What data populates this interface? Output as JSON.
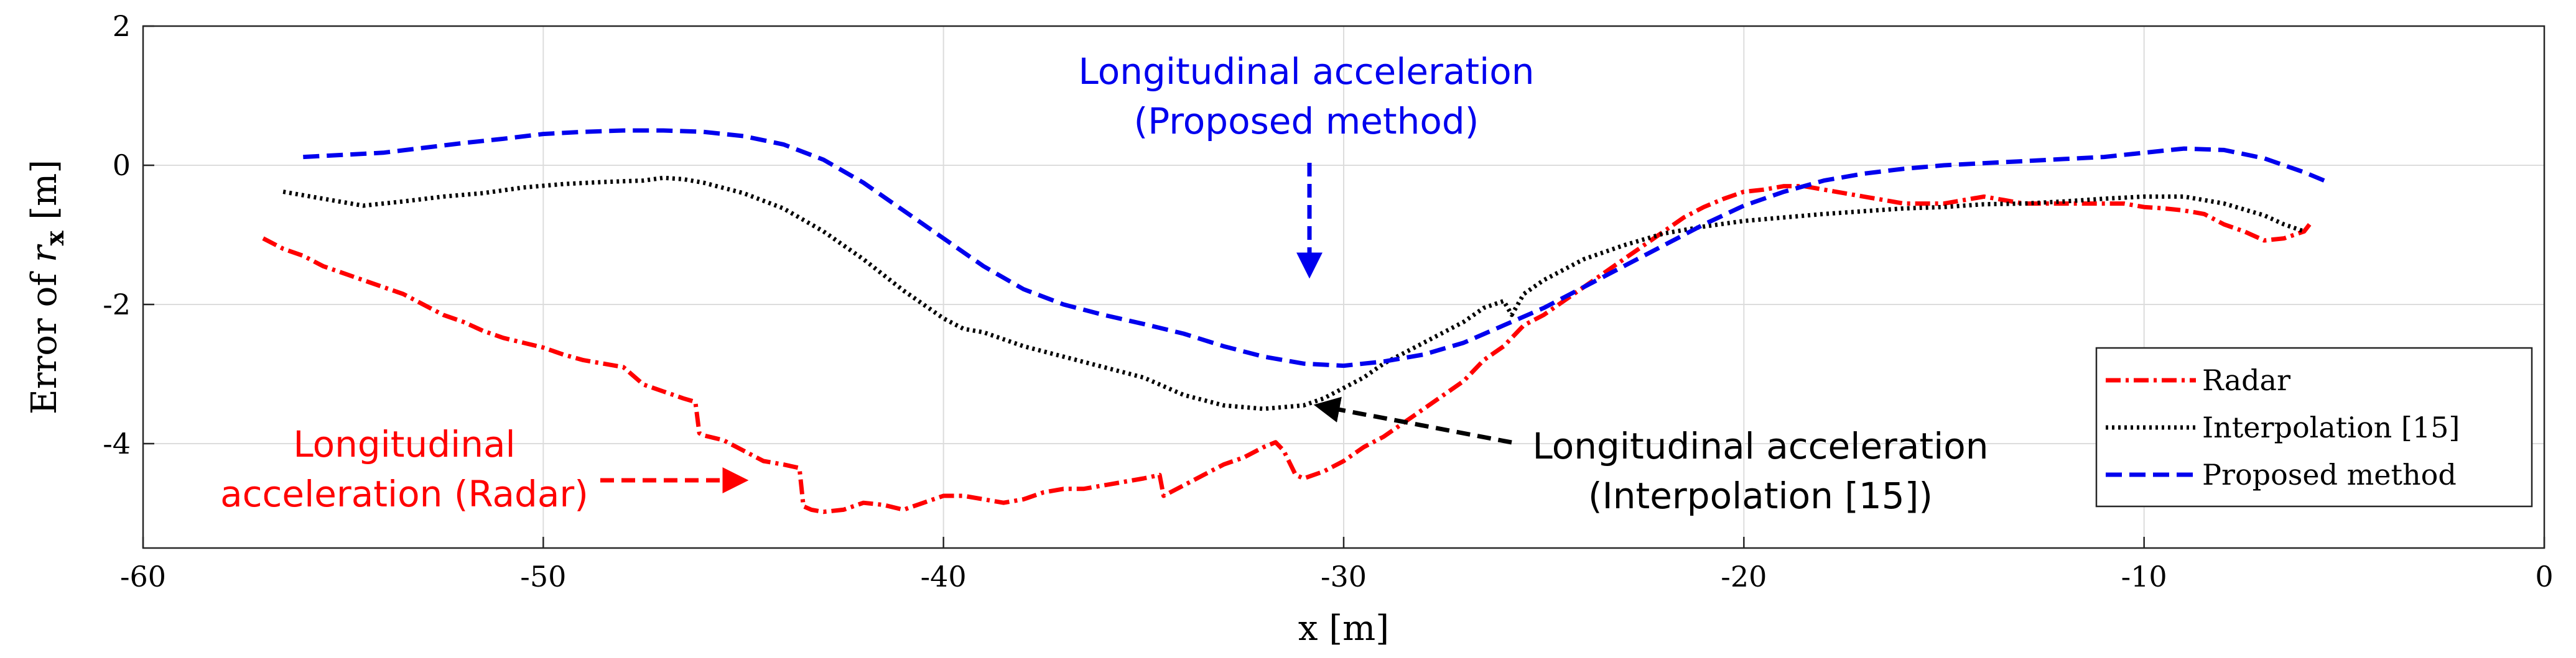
{
  "chart_data": {
    "type": "line",
    "xlabel": "x [m]",
    "ylabel_prefix": "Error of ",
    "ylabel_symbol": "r",
    "ylabel_subscript": "x",
    "ylabel_suffix": " [m]",
    "xlim": [
      -60,
      0
    ],
    "ylim": [
      -5.5,
      2
    ],
    "xticks": [
      -60,
      -50,
      -40,
      -30,
      -20,
      -10,
      0
    ],
    "yticks": [
      -4,
      -2,
      0,
      2
    ],
    "grid": true,
    "legend_position": "bottom-right",
    "series": [
      {
        "name": "Radar",
        "color": "#ff0000",
        "style": "dash-dot",
        "x": [
          -57,
          -56.5,
          -56,
          -55.5,
          -55,
          -54.5,
          -54,
          -53.5,
          -53,
          -52.5,
          -52,
          -51.5,
          -51,
          -50.5,
          -50,
          -49.5,
          -49,
          -48.5,
          -48,
          -47.5,
          -47,
          -46.5,
          -46.2,
          -46.1,
          -46,
          -45.5,
          -45,
          -44.5,
          -44,
          -43.6,
          -43.5,
          -43.3,
          -43,
          -42.5,
          -42,
          -41.5,
          -41,
          -40.5,
          -40,
          -39.5,
          -39,
          -38.5,
          -38,
          -37.5,
          -37,
          -36.5,
          -36,
          -35.5,
          -35,
          -34.6,
          -34.5,
          -34,
          -33.5,
          -33,
          -32.5,
          -32,
          -31.7,
          -31.5,
          -31.2,
          -31,
          -30.5,
          -30,
          -29.5,
          -29,
          -28.5,
          -28,
          -27.5,
          -27,
          -26.5,
          -26,
          -25.5,
          -25,
          -24.5,
          -24,
          -23.5,
          -23,
          -22.5,
          -22,
          -21.5,
          -21,
          -20.5,
          -20,
          -19.5,
          -19,
          -18.5,
          -18,
          -17.5,
          -17,
          -16.5,
          -16,
          -15.5,
          -15,
          -14.5,
          -14,
          -13.5,
          -13,
          -12.5,
          -12,
          -11.5,
          -11,
          -10.5,
          -10,
          -9.5,
          -9,
          -8.5,
          -8,
          -7.5,
          -7,
          -6.5,
          -6,
          -5.8
        ],
        "y": [
          -1.05,
          -1.2,
          -1.3,
          -1.45,
          -1.55,
          -1.65,
          -1.75,
          -1.85,
          -2.0,
          -2.15,
          -2.25,
          -2.38,
          -2.48,
          -2.55,
          -2.62,
          -2.72,
          -2.8,
          -2.85,
          -2.9,
          -3.15,
          -3.25,
          -3.35,
          -3.4,
          -3.85,
          -3.88,
          -3.95,
          -4.1,
          -4.25,
          -4.3,
          -4.35,
          -4.9,
          -4.95,
          -4.98,
          -4.95,
          -4.85,
          -4.88,
          -4.95,
          -4.85,
          -4.75,
          -4.75,
          -4.8,
          -4.85,
          -4.8,
          -4.7,
          -4.65,
          -4.65,
          -4.6,
          -4.55,
          -4.5,
          -4.45,
          -4.75,
          -4.6,
          -4.45,
          -4.3,
          -4.2,
          -4.05,
          -3.98,
          -4.1,
          -4.45,
          -4.5,
          -4.4,
          -4.25,
          -4.05,
          -3.9,
          -3.7,
          -3.5,
          -3.3,
          -3.1,
          -2.8,
          -2.6,
          -2.3,
          -2.15,
          -1.95,
          -1.75,
          -1.55,
          -1.35,
          -1.15,
          -0.95,
          -0.75,
          -0.6,
          -0.48,
          -0.38,
          -0.35,
          -0.3,
          -0.3,
          -0.35,
          -0.4,
          -0.45,
          -0.5,
          -0.55,
          -0.55,
          -0.55,
          -0.5,
          -0.45,
          -0.5,
          -0.55,
          -0.55,
          -0.55,
          -0.55,
          -0.55,
          -0.55,
          -0.6,
          -0.62,
          -0.65,
          -0.7,
          -0.85,
          -0.95,
          -1.08,
          -1.05,
          -0.95,
          -0.8
        ]
      },
      {
        "name": "Interpolation [15]",
        "color": "#000000",
        "style": "dotted",
        "x": [
          -56.5,
          -55.5,
          -54.5,
          -53.5,
          -52.5,
          -51.5,
          -50.5,
          -49.5,
          -48.5,
          -47.5,
          -47,
          -46.5,
          -46,
          -45,
          -44,
          -43,
          -42,
          -41,
          -40,
          -39.5,
          -39,
          -38.5,
          -38,
          -37,
          -36,
          -35,
          -34,
          -33,
          -32,
          -31,
          -30.5,
          -30,
          -29.5,
          -29,
          -28.5,
          -28,
          -27.5,
          -27,
          -26.5,
          -26,
          -25.8,
          -25.5,
          -25,
          -24.5,
          -24,
          -23,
          -22,
          -21,
          -20,
          -19,
          -18,
          -17,
          -16,
          -15,
          -14,
          -13,
          -12,
          -11,
          -10,
          -9,
          -8,
          -7,
          -6.5,
          -6
        ],
        "y": [
          -0.38,
          -0.48,
          -0.58,
          -0.52,
          -0.45,
          -0.4,
          -0.32,
          -0.27,
          -0.24,
          -0.22,
          -0.18,
          -0.2,
          -0.25,
          -0.4,
          -0.62,
          -0.95,
          -1.35,
          -1.8,
          -2.2,
          -2.35,
          -2.4,
          -2.5,
          -2.6,
          -2.75,
          -2.9,
          -3.05,
          -3.3,
          -3.45,
          -3.5,
          -3.45,
          -3.35,
          -3.2,
          -3.05,
          -2.85,
          -2.7,
          -2.55,
          -2.4,
          -2.25,
          -2.05,
          -1.95,
          -2.15,
          -1.85,
          -1.65,
          -1.5,
          -1.35,
          -1.15,
          -0.98,
          -0.88,
          -0.8,
          -0.75,
          -0.7,
          -0.66,
          -0.62,
          -0.6,
          -0.56,
          -0.55,
          -0.52,
          -0.48,
          -0.45,
          -0.45,
          -0.55,
          -0.72,
          -0.85,
          -0.95
        ]
      },
      {
        "name": "Proposed method",
        "color": "#0000ee",
        "style": "dashed",
        "x": [
          -56,
          -55,
          -54,
          -53,
          -52,
          -51,
          -50,
          -49,
          -48,
          -47,
          -46,
          -45,
          -44,
          -43,
          -42,
          -41,
          -40,
          -39,
          -38,
          -37,
          -36,
          -35,
          -34,
          -33,
          -32,
          -31,
          -30,
          -29,
          -28,
          -27,
          -26,
          -25,
          -24,
          -23,
          -22,
          -21,
          -20,
          -19,
          -18,
          -17,
          -16,
          -15,
          -14,
          -13,
          -12,
          -11,
          -10,
          -9,
          -8,
          -7,
          -6,
          -5.5
        ],
        "y": [
          0.12,
          0.15,
          0.18,
          0.25,
          0.32,
          0.38,
          0.45,
          0.48,
          0.5,
          0.5,
          0.48,
          0.42,
          0.3,
          0.08,
          -0.25,
          -0.65,
          -1.05,
          -1.45,
          -1.78,
          -2.0,
          -2.15,
          -2.28,
          -2.42,
          -2.6,
          -2.75,
          -2.85,
          -2.88,
          -2.82,
          -2.72,
          -2.55,
          -2.3,
          -2.05,
          -1.75,
          -1.45,
          -1.15,
          -0.85,
          -0.58,
          -0.38,
          -0.22,
          -0.12,
          -0.05,
          0.0,
          0.03,
          0.06,
          0.09,
          0.12,
          0.18,
          0.24,
          0.22,
          0.1,
          -0.1,
          -0.22
        ]
      }
    ],
    "annotations": [
      {
        "lines": [
          "Longitudinal acceleration",
          "(Proposed method)"
        ],
        "color": "#0000ee"
      },
      {
        "lines": [
          "Longitudinal acceleration",
          "(Interpolation [15])"
        ],
        "color": "#000000"
      },
      {
        "lines": [
          "Longitudinal",
          "acceleration (Radar)"
        ],
        "color": "#ff0000"
      }
    ]
  }
}
